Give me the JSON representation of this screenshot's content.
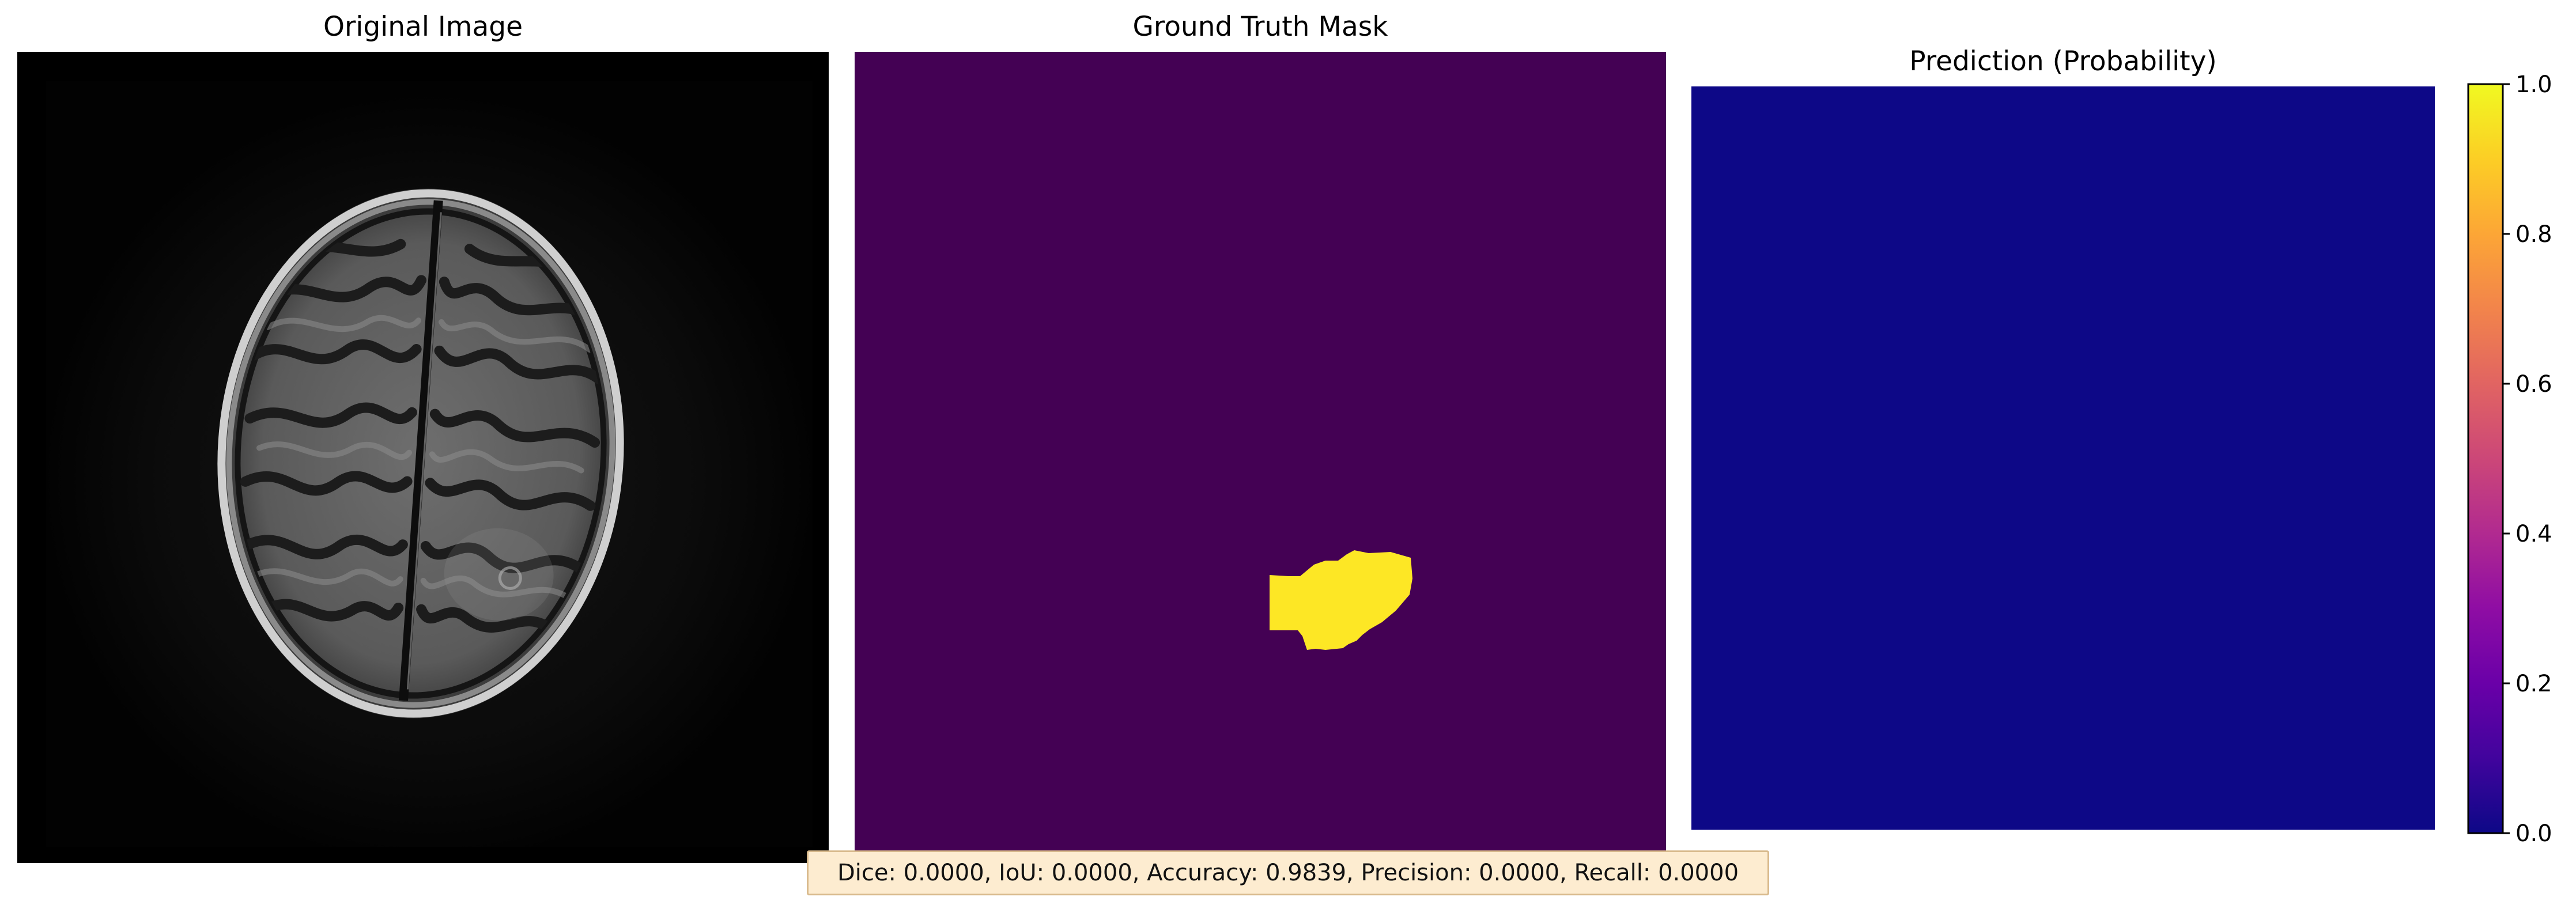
{
  "panels": {
    "original_title": "Original Image",
    "ground_truth_title": "Ground Truth Mask",
    "prediction_title": "Prediction (Probability)"
  },
  "colorbar": {
    "colormap": "plasma",
    "ticks": [
      "0.0",
      "0.2",
      "0.4",
      "0.6",
      "0.8",
      "1.0"
    ]
  },
  "metrics": {
    "text": "Dice: 0.0000, IoU: 0.0000, Accuracy: 0.9839, Precision: 0.0000, Recall: 0.0000"
  },
  "colors": {
    "mask_background": "#440154",
    "mask_foreground": "#fde725",
    "prediction_fill": "#0d0887",
    "metrics_box": "#fdecd0"
  }
}
